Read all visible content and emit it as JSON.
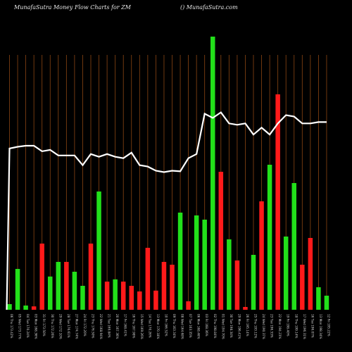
{
  "header": {
    "title": "MunafaSutra  Money Flow  Charts for ZM",
    "site": "() MunafaSutra.com"
  },
  "colors": {
    "background": "#000000",
    "grid": "#8B4513",
    "up": "#22e01a",
    "down": "#ff1a1a",
    "line": "#ffffff"
  },
  "chart_data": {
    "type": "bar",
    "title": "MunafaSutra  Money Flow  Charts for ZM",
    "grid": "vertical",
    "bars": [
      {
        "label": "06 Thu 173.42%",
        "value": 2.0,
        "color": "up"
      },
      {
        "label": "05 Wed 173.77%",
        "value": 14.5,
        "color": "up"
      },
      {
        "label": "04 Tue 170.24%",
        "value": 1.5,
        "color": "up"
      },
      {
        "label": "03 Mon 168.36%",
        "value": 1.2,
        "color": "down"
      },
      {
        "label": "31 Fri 173.50%",
        "value": 23.5,
        "color": "down"
      },
      {
        "label": "30 Thu 172.26%",
        "value": 11.8,
        "color": "up"
      },
      {
        "label": "29 Wed 172.10%",
        "value": 17.0,
        "color": "up"
      },
      {
        "label": "28 Tue 176.61%",
        "value": 17.0,
        "color": "down"
      },
      {
        "label": "27 Mon 174.74%",
        "value": 13.5,
        "color": "up"
      },
      {
        "label": "24 Fri 172.20%",
        "value": 8.5,
        "color": "up"
      },
      {
        "label": "23 Thu 176.50%",
        "value": 23.5,
        "color": "down"
      },
      {
        "label": "22 Wed 168.94%",
        "value": 42.0,
        "color": "up"
      },
      {
        "label": "21 Tue 169.84%",
        "value": 10.0,
        "color": "down"
      },
      {
        "label": "20 Mon 167.36%",
        "value": 10.8,
        "color": "up"
      },
      {
        "label": "17 Fri 168.41%",
        "value": 10.0,
        "color": "down"
      },
      {
        "label": "16 Thu 167.98%",
        "value": 8.5,
        "color": "down"
      },
      {
        "label": "15 Wed 169.26%",
        "value": 6.5,
        "color": "down"
      },
      {
        "label": "14 Tue 170.26%",
        "value": 22.0,
        "color": "down"
      },
      {
        "label": "13 Mon 170.18%",
        "value": 6.8,
        "color": "down"
      },
      {
        "label": "10 Fri 166.52%",
        "value": 17.0,
        "color": "down"
      },
      {
        "label": "09 Thu 163.34%",
        "value": 16.0,
        "color": "down"
      },
      {
        "label": "08 Wed 164.68%",
        "value": 34.5,
        "color": "up"
      },
      {
        "label": "07 Tue 163.35%",
        "value": 3.0,
        "color": "down"
      },
      {
        "label": "06 Mon 168.46%",
        "value": 33.5,
        "color": "up"
      },
      {
        "label": "03 Fri 168.36%",
        "value": 32.0,
        "color": "up"
      },
      {
        "label": "02 Thu 198.84%",
        "value": 97.0,
        "color": "up"
      },
      {
        "label": "01 Wed 194.70%",
        "value": 49.0,
        "color": "down"
      },
      {
        "label": "30 Tue 198.34%",
        "value": 25.0,
        "color": "up"
      },
      {
        "label": "29 Mon 196.41%",
        "value": 17.5,
        "color": "down"
      },
      {
        "label": "26 Fri 195.14%",
        "value": 1.0,
        "color": "down"
      },
      {
        "label": "25 Thu 193.12%",
        "value": 19.5,
        "color": "up"
      },
      {
        "label": "24 Wed 190.37%",
        "value": 38.5,
        "color": "down"
      },
      {
        "label": "23 Tue 196.53%",
        "value": 51.5,
        "color": "up"
      },
      {
        "label": "22 Mon 194.23%",
        "value": 76.5,
        "color": "down"
      },
      {
        "label": "19 Fri 198.40%",
        "value": 26.0,
        "color": "up"
      },
      {
        "label": "18 Thu 199.14%",
        "value": 45.0,
        "color": "up"
      },
      {
        "label": "17 Wed 196.31%",
        "value": 16.0,
        "color": "down"
      },
      {
        "label": "16 Tue 196.07%",
        "value": 25.5,
        "color": "down"
      },
      {
        "label": "13 Mon 198.34%",
        "value": 8.0,
        "color": "up"
      },
      {
        "label": "12 Fri 195.22%",
        "value": 5.0,
        "color": "up"
      }
    ],
    "line_values": [
      58,
      58.6,
      59,
      59,
      57,
      57.5,
      55.5,
      55.5,
      55.5,
      52,
      56,
      55,
      56,
      55,
      54.5,
      56.5,
      52,
      51.5,
      50,
      49.5,
      50,
      49.8,
      54.5,
      56,
      70.5,
      69,
      71,
      67,
      66.5,
      67,
      63,
      65.5,
      63,
      67,
      70,
      69.5,
      67,
      67,
      67.5,
      67.5
    ]
  }
}
